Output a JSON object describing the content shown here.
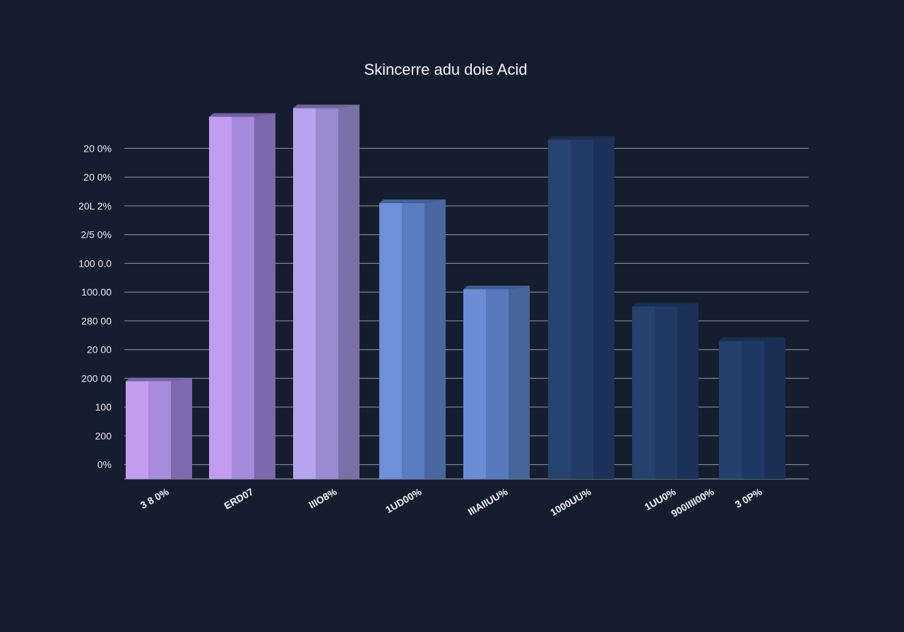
{
  "chart_data": {
    "type": "bar",
    "title": "Skincerre adu doie Acid",
    "xlabel": "",
    "ylabel": "",
    "ylim": [
      0,
      13.5
    ],
    "grid": true,
    "yticks": [
      {
        "value": 11.5,
        "label": "20 0%"
      },
      {
        "value": 10.5,
        "label": "20 0%"
      },
      {
        "value": 9.5,
        "label": "20L 2%"
      },
      {
        "value": 8.5,
        "label": "2/5 0%"
      },
      {
        "value": 7.5,
        "label": "100 0.0"
      },
      {
        "value": 6.5,
        "label": "100.00"
      },
      {
        "value": 5.5,
        "label": "280 00"
      },
      {
        "value": 4.5,
        "label": "20 00"
      },
      {
        "value": 3.5,
        "label": "200 00"
      },
      {
        "value": 2.5,
        "label": "100"
      },
      {
        "value": 1.5,
        "label": "200"
      },
      {
        "value": 0.5,
        "label": "0%"
      }
    ],
    "categories": [
      "3 8 0%",
      "ERD07",
      "IIIO8%",
      "1UD00%",
      "IIIAIIUU%",
      "1000UU%",
      "1UU0%",
      "3 0P%"
    ],
    "extra_labels": [
      "900IIII00%"
    ],
    "values": [
      3.4,
      12.6,
      12.9,
      9.6,
      6.6,
      11.8,
      6.0,
      4.8
    ],
    "colors": [
      [
        "#c39cf0",
        "#a98bde",
        "#7f6ab0"
      ],
      [
        "#c29cf0",
        "#a68adc",
        "#7c68ac"
      ],
      [
        "#b6a4ee",
        "#9a8ad0",
        "#7a70a8"
      ],
      [
        "#6f90d8",
        "#5a7cc0",
        "#4a689f"
      ],
      [
        "#6a8cd4",
        "#5879bc",
        "#48659a"
      ],
      [
        "#27436f",
        "#223b66",
        "#1c3157"
      ],
      [
        "#26426e",
        "#213a65",
        "#1b3056"
      ],
      [
        "#25406c",
        "#203963",
        "#1b2f55"
      ]
    ]
  }
}
